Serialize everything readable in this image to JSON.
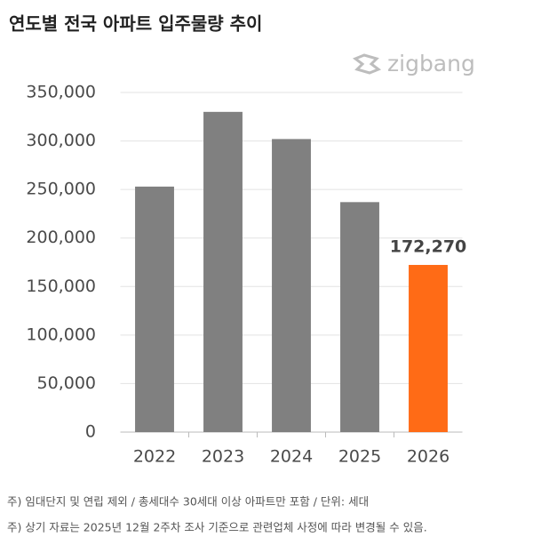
{
  "chart_data": {
    "type": "bar",
    "title": "연도별 전국 아파트 입주물량 추이",
    "logo": "zigbang",
    "categories": [
      "2022",
      "2023",
      "2024",
      "2025",
      "2026"
    ],
    "values": [
      253000,
      330000,
      302000,
      237000,
      172270
    ],
    "value_labels": [
      null,
      null,
      null,
      null,
      "172,270"
    ],
    "colors": [
      "#808080",
      "#808080",
      "#808080",
      "#808080",
      "#ff6b16"
    ],
    "ylim": [
      0,
      350000
    ],
    "yticks": [
      0,
      {
        "value": 50000,
        "label": "50,000"
      },
      {
        "value": 100000,
        "label": "100,000"
      },
      {
        "value": 150000,
        "label": "150,000"
      },
      {
        "value": 200000,
        "label": "200,000"
      },
      {
        "value": 250000,
        "label": "250,000"
      },
      {
        "value": 300000,
        "label": "300,000"
      },
      {
        "value": 350000,
        "label": "350,000"
      }
    ],
    "grid": true,
    "notes": [
      "주) 임대단지 및 연립 제외 / 총세대수 30세대 이상 아파트만 포함 / 단위: 세대",
      "주) 상기 자료는 2025년 12월 2주차 조사 기준으로 관련업체 사정에 따라 변경될 수 있음."
    ]
  }
}
